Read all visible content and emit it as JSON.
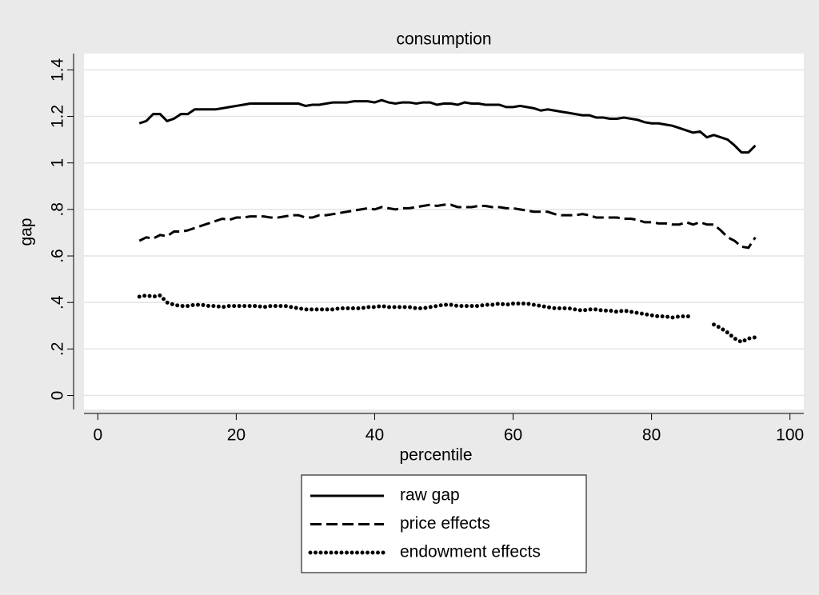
{
  "chart_data": {
    "type": "line",
    "title": "consumption",
    "x_label": "percentile",
    "y_label": "gap",
    "x": [
      6,
      7,
      8,
      9,
      10,
      11,
      12,
      13,
      14,
      15,
      16,
      17,
      18,
      19,
      20,
      21,
      22,
      23,
      24,
      25,
      26,
      27,
      28,
      29,
      30,
      31,
      32,
      33,
      34,
      35,
      36,
      37,
      38,
      39,
      40,
      41,
      42,
      43,
      44,
      45,
      46,
      47,
      48,
      49,
      50,
      51,
      52,
      53,
      54,
      55,
      56,
      57,
      58,
      59,
      60,
      61,
      62,
      63,
      64,
      65,
      66,
      67,
      68,
      69,
      70,
      71,
      72,
      73,
      74,
      75,
      76,
      77,
      78,
      79,
      80,
      81,
      82,
      83,
      84,
      85,
      86,
      87,
      88,
      89,
      90,
      91,
      92,
      93,
      94,
      95
    ],
    "series": [
      {
        "name": "raw gap",
        "color": "#000000",
        "dash": "solid",
        "values": [
          1.17,
          1.18,
          1.21,
          1.21,
          1.18,
          1.19,
          1.21,
          1.21,
          1.23,
          1.23,
          1.23,
          1.23,
          1.235,
          1.24,
          1.245,
          1.25,
          1.255,
          1.255,
          1.255,
          1.255,
          1.255,
          1.255,
          1.255,
          1.255,
          1.245,
          1.25,
          1.25,
          1.255,
          1.26,
          1.26,
          1.26,
          1.265,
          1.265,
          1.265,
          1.26,
          1.27,
          1.26,
          1.255,
          1.26,
          1.26,
          1.255,
          1.26,
          1.26,
          1.25,
          1.255,
          1.255,
          1.25,
          1.26,
          1.255,
          1.255,
          1.25,
          1.25,
          1.25,
          1.24,
          1.24,
          1.245,
          1.24,
          1.235,
          1.225,
          1.23,
          1.225,
          1.22,
          1.215,
          1.21,
          1.205,
          1.205,
          1.195,
          1.195,
          1.19,
          1.19,
          1.195,
          1.19,
          1.185,
          1.175,
          1.17,
          1.17,
          1.165,
          1.16,
          1.15,
          1.14,
          1.13,
          1.135,
          1.11,
          1.12,
          1.11,
          1.1,
          1.075,
          1.045,
          1.045,
          1.075
        ]
      },
      {
        "name": "price effects",
        "color": "#000000",
        "dash": "dash",
        "values": [
          0.665,
          0.68,
          0.675,
          0.69,
          0.685,
          0.705,
          0.705,
          0.71,
          0.72,
          0.73,
          0.74,
          0.75,
          0.76,
          0.755,
          0.765,
          0.765,
          0.77,
          0.77,
          0.77,
          0.765,
          0.765,
          0.77,
          0.775,
          0.775,
          0.765,
          0.765,
          0.775,
          0.775,
          0.78,
          0.785,
          0.79,
          0.795,
          0.8,
          0.805,
          0.8,
          0.81,
          0.805,
          0.8,
          0.805,
          0.805,
          0.81,
          0.815,
          0.82,
          0.815,
          0.82,
          0.82,
          0.81,
          0.81,
          0.81,
          0.815,
          0.815,
          0.81,
          0.81,
          0.805,
          0.805,
          0.8,
          0.795,
          0.79,
          0.79,
          0.79,
          0.78,
          0.775,
          0.775,
          0.775,
          0.78,
          0.775,
          0.765,
          0.765,
          0.765,
          0.765,
          0.76,
          0.76,
          0.755,
          0.745,
          0.745,
          0.74,
          0.74,
          0.735,
          0.735,
          0.745,
          0.735,
          0.745,
          0.735,
          0.735,
          0.71,
          0.68,
          0.665,
          0.64,
          0.635,
          0.68
        ]
      },
      {
        "name": "endowment effects",
        "color": "#000000",
        "dash": "dot",
        "values": [
          0.425,
          0.43,
          0.425,
          0.43,
          0.4,
          0.39,
          0.385,
          0.385,
          0.39,
          0.39,
          0.385,
          0.385,
          0.38,
          0.385,
          0.385,
          0.385,
          0.385,
          0.385,
          0.38,
          0.385,
          0.385,
          0.385,
          0.38,
          0.375,
          0.37,
          0.37,
          0.37,
          0.37,
          0.37,
          0.375,
          0.375,
          0.375,
          0.375,
          0.38,
          0.38,
          0.385,
          0.38,
          0.38,
          0.38,
          0.38,
          0.375,
          0.375,
          0.38,
          0.385,
          0.39,
          0.39,
          0.385,
          0.385,
          0.385,
          0.385,
          0.39,
          0.39,
          0.395,
          0.39,
          0.395,
          0.395,
          0.395,
          0.39,
          0.385,
          0.38,
          0.375,
          0.375,
          0.375,
          0.37,
          0.365,
          0.37,
          0.37,
          0.365,
          0.365,
          0.36,
          0.365,
          0.36,
          0.355,
          0.35,
          0.345,
          0.34,
          0.34,
          0.335,
          0.34,
          0.34,
          0.34,
          null,
          null,
          0.305,
          0.29,
          0.27,
          0.245,
          0.23,
          0.245,
          0.25
        ]
      }
    ],
    "xlim": [
      -2,
      102
    ],
    "ylim": [
      -0.06,
      1.47
    ],
    "xticks": [
      0,
      20,
      40,
      60,
      80,
      100
    ],
    "yticks": [
      0,
      {
        "value": 0.2,
        "label": ".2"
      },
      {
        "value": 0.4,
        "label": ".4"
      },
      {
        "value": 0.6,
        "label": ".6"
      },
      {
        "value": 0.8,
        "label": ".8"
      },
      1,
      1.2,
      1.4
    ],
    "grid": true,
    "legend": "bottom"
  }
}
